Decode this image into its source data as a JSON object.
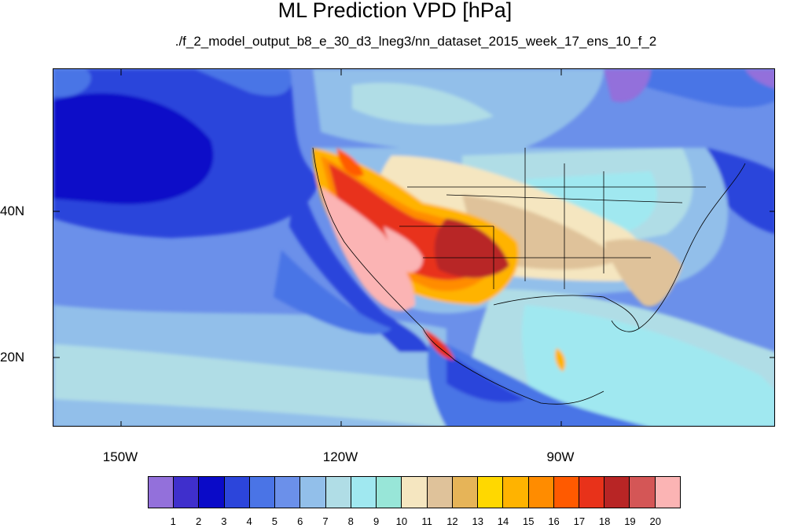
{
  "title": "ML Prediction VPD [hPa]",
  "subtitle": "./f_2_model_output_b8_e_30_d3_lneg3/nn_dataset_2015_week_17_ens_10_f_2",
  "y_axis_labels": [
    "40N",
    "20N"
  ],
  "x_axis_labels": [
    "150W",
    "120W",
    "90W"
  ],
  "colorbar": {
    "colors": [
      "#9370db",
      "#3f2fcc",
      "#0a0ac8",
      "#2c45db",
      "#4a74e6",
      "#6b90ea",
      "#92bfea",
      "#b0dde6",
      "#a0e8f0",
      "#98e6d8",
      "#f5e6c0",
      "#dfc29a",
      "#e6b458",
      "#ffd800",
      "#ffb300",
      "#ff8c00",
      "#ff5a00",
      "#e8321a",
      "#b82525",
      "#d45656",
      "#fbb4b4"
    ],
    "labels": [
      "1",
      "2",
      "3",
      "4",
      "5",
      "6",
      "7",
      "8",
      "9",
      "10",
      "11",
      "12",
      "13",
      "14",
      "15",
      "16",
      "17",
      "18",
      "19",
      "20"
    ]
  }
}
